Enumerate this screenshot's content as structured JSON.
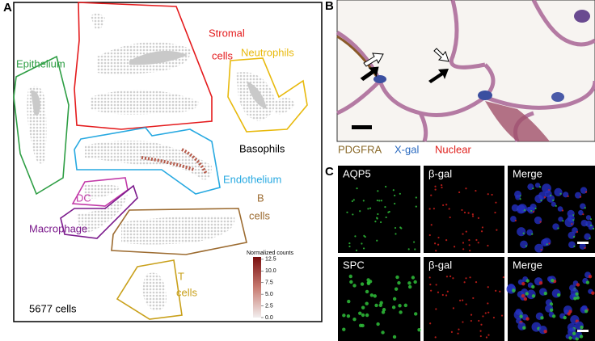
{
  "panels": {
    "a": "A",
    "b": "B",
    "c": "C"
  },
  "umap": {
    "clusters": [
      {
        "label_lines": [
          "Stromal",
          "cells"
        ]
      },
      {
        "label_lines": [
          "Epithelium"
        ]
      },
      {
        "label_lines": [
          "Neutrophils"
        ]
      },
      {
        "label_lines": [
          "Basophils"
        ]
      },
      {
        "label_lines": [
          "Endothelium"
        ]
      },
      {
        "label_lines": [
          "DC"
        ]
      },
      {
        "label_lines": [
          "Macrophage"
        ]
      },
      {
        "label_lines": [
          "B",
          "cells"
        ]
      },
      {
        "label_lines": [
          "T",
          "cells"
        ]
      }
    ],
    "cell_count": "5677 cells",
    "colorbar": {
      "title": "Normalized counts",
      "lim": [
        0,
        13
      ],
      "ticks": [
        12.5,
        {
          "value": 10,
          "label": "10.0"
        },
        7.5,
        {
          "value": 5,
          "label": "5.0"
        },
        2.5,
        {
          "value": 0,
          "label": "0.0"
        }
      ]
    }
  },
  "staining_legend": [
    "PDGFRA",
    "X-gal",
    "Nuclear"
  ],
  "immunofluorescence": {
    "rows": [
      {
        "labels": [
          "AQP5",
          "β-gal",
          "Merge"
        ]
      },
      {
        "labels": [
          "SPC",
          "β-gal",
          "Merge"
        ]
      }
    ]
  }
}
